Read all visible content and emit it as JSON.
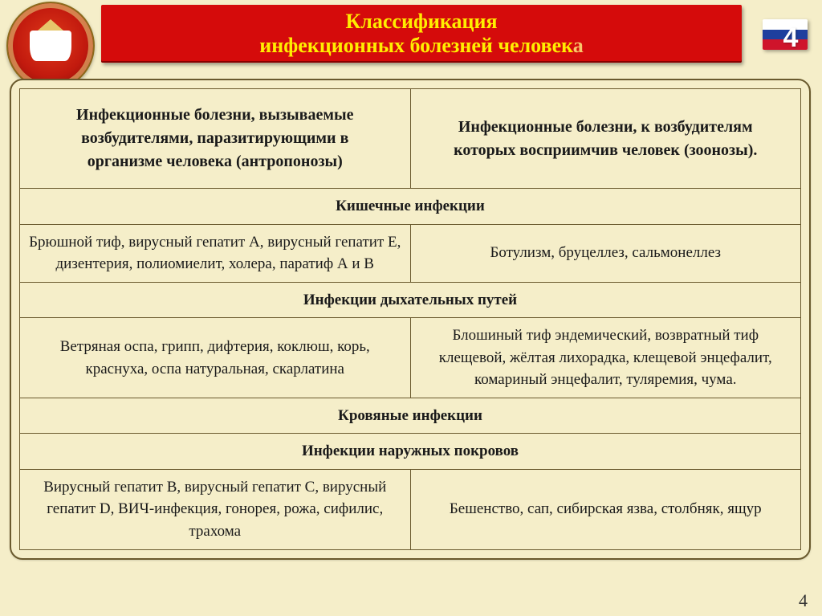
{
  "header": {
    "line1": "Классификация",
    "line2_main": "инфекционных болезней человек",
    "line2_fade": "а"
  },
  "page_number_top": "4",
  "page_number_bottom": "4",
  "flag_colors": {
    "top": "#ffffff",
    "middle": "#1e3f9e",
    "bottom": "#cf142b"
  },
  "table": {
    "col_left_header": "Инфекционные болезни, вызываемые возбудителями, паразитирующими в организме человека (антропонозы)",
    "col_right_header": "Инфекционные болезни, к возбудителям которых восприимчив человек (зоонозы).",
    "sections": [
      {
        "title": "Кишечные инфекции",
        "left": "Брюшной тиф, вирусный гепатит А, вирусный гепатит Е, дизентерия, полиомиелит, холера, паратиф А и В",
        "right": "Ботулизм, бруцеллез, сальмонеллез"
      },
      {
        "title": "Инфекции дыхательных путей",
        "left": "Ветряная оспа, грипп, дифтерия, коклюш, корь, краснуха, оспа натуральная, скарлатина",
        "right": "Блошиный тиф эндемический, возвратный тиф клещевой, жёлтая лихорадка, клещевой энцефалит, комариный энцефалит, туляремия, чума."
      }
    ],
    "blood_title": "Кровяные инфекции",
    "skin_section": {
      "title": "Инфекции наружных покровов",
      "left": "Вирусный гепатит В, вирусный гепатит С, вирусный гепатит D, ВИЧ-инфекция, гонорея, рожа, сифилис, трахома",
      "right": "Бешенство, сап, сибирская язва, столбняк, ящур"
    }
  },
  "style": {
    "background_color": "#f5eec9",
    "banner_bg": "#d50b0b",
    "banner_text_color": "#ffee00",
    "table_border_color": "#6a5a2e",
    "header_fontsize_pt": 20,
    "body_fontsize_pt": 14,
    "font_family": "Times New Roman"
  }
}
